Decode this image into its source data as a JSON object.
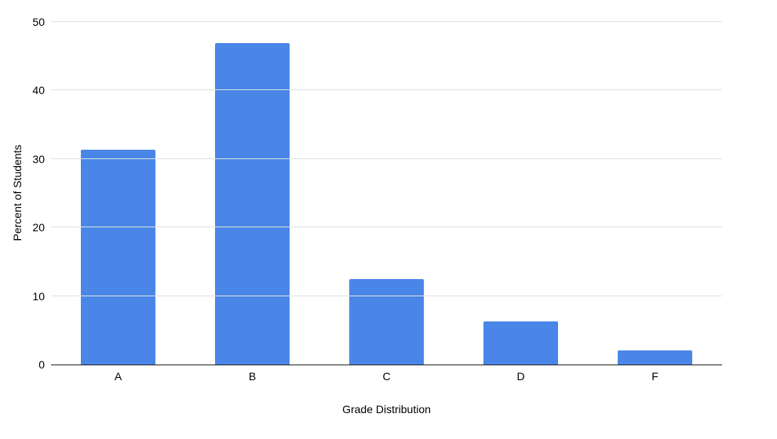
{
  "chart_data": {
    "type": "bar",
    "categories": [
      "A",
      "B",
      "C",
      "D",
      "F"
    ],
    "values": [
      31.3,
      46.9,
      12.5,
      6.3,
      2.1
    ],
    "title": "",
    "xlabel": "Grade Distribution",
    "ylabel": "Percent of Students",
    "ylim": [
      0,
      50
    ],
    "yticks": [
      0,
      10,
      20,
      30,
      40,
      50
    ],
    "grid": true,
    "legend": "none",
    "bar_color": "#4a86e8",
    "gridline_color": "#e0e0e0",
    "axis_line_color": "#212121",
    "text_color": "#000000"
  }
}
